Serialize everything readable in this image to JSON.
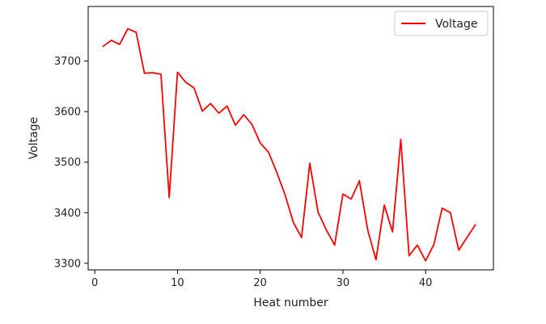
{
  "chart_data": {
    "type": "line",
    "title": "",
    "xlabel": "Heat number",
    "ylabel": "Voltage",
    "xlim": [
      -0.8,
      48.2
    ],
    "ylim": [
      3287,
      3808
    ],
    "xticks": [
      0,
      10,
      20,
      30,
      40
    ],
    "yticks": [
      3300,
      3400,
      3500,
      3600,
      3700
    ],
    "grid": false,
    "legend": "top-right",
    "series": [
      {
        "name": "Voltage",
        "color": "#ff0000",
        "x": [
          1,
          2,
          3,
          4,
          5,
          6,
          7,
          8,
          9,
          10,
          11,
          12,
          13,
          14,
          15,
          16,
          17,
          18,
          19,
          20,
          21,
          22,
          23,
          24,
          25,
          26,
          27,
          28,
          29,
          30,
          31,
          32,
          33,
          34,
          35,
          36,
          37,
          38,
          39,
          40,
          41,
          42,
          43,
          44,
          45,
          46
        ],
        "values": [
          3729,
          3741,
          3733,
          3764,
          3757,
          3676,
          3677,
          3674,
          3430,
          3678,
          3658,
          3647,
          3601,
          3616,
          3597,
          3611,
          3573,
          3594,
          3575,
          3538,
          3520,
          3480,
          3436,
          3381,
          3351,
          3498,
          3401,
          3366,
          3336,
          3437,
          3427,
          3463,
          3366,
          3307,
          3415,
          3362,
          3545,
          3315,
          3336,
          3305,
          3337,
          3409,
          3400,
          3326,
          3351,
          3376
        ]
      }
    ]
  }
}
